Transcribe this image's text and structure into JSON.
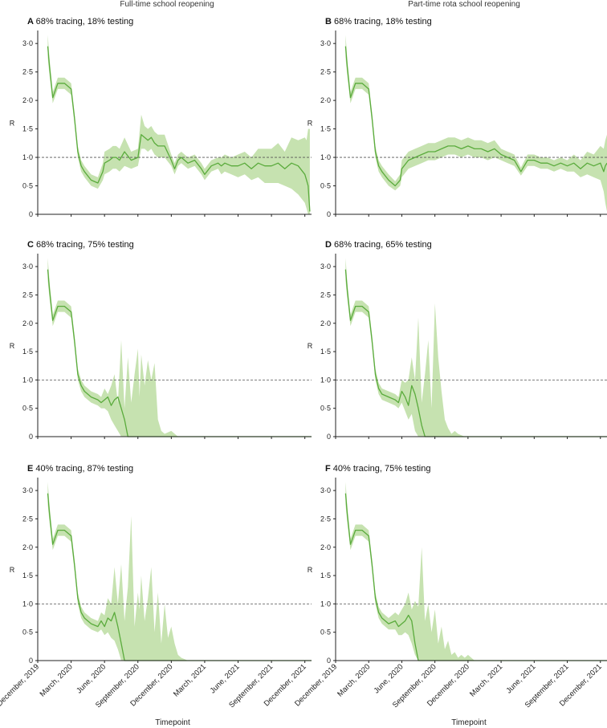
{
  "column_titles": [
    "Full-time school reopening",
    "Part-time rota school reopening"
  ],
  "x_axis_label": "Timepoint",
  "x_ticks": [
    "December, 2019",
    "March, 2020",
    "June, 2020",
    "September, 2020",
    "December, 2020",
    "March, 2021",
    "June, 2021",
    "September, 2021",
    "December, 2021"
  ],
  "y_axis_label": "R",
  "y_ticks": [
    "0",
    "0·5",
    "1·0",
    "1·5",
    "2·0",
    "2·5",
    "3·0"
  ],
  "reference_line": 1.0,
  "colors": {
    "line": "#5aab3c",
    "band": "#c6e2b0",
    "ref": "#555555",
    "axis": "#222222"
  },
  "chart_data": [
    {
      "type": "line",
      "letter": "A",
      "title": "68% tracing, 18% testing",
      "column": 0,
      "row": 0,
      "xlabel": "Timepoint",
      "ylabel": "R",
      "xlim": [
        0,
        8.2
      ],
      "ylim": [
        0,
        3.2
      ],
      "x": [
        0.3,
        0.35,
        0.45,
        0.6,
        0.8,
        1.0,
        1.1,
        1.2,
        1.3,
        1.4,
        1.6,
        1.8,
        1.95,
        2.0,
        2.15,
        2.25,
        2.35,
        2.45,
        2.6,
        2.8,
        3.0,
        3.1,
        3.2,
        3.3,
        3.4,
        3.5,
        3.6,
        3.8,
        4.0,
        4.1,
        4.2,
        4.3,
        4.5,
        4.7,
        4.9,
        5.0,
        5.2,
        5.4,
        5.5,
        5.6,
        5.8,
        6.0,
        6.2,
        6.4,
        6.6,
        6.8,
        7.0,
        7.2,
        7.4,
        7.6,
        7.8,
        8.0,
        8.05,
        8.1,
        8.15
      ],
      "mean": [
        2.95,
        2.6,
        2.05,
        2.3,
        2.3,
        2.2,
        1.7,
        1.1,
        0.85,
        0.75,
        0.6,
        0.55,
        0.75,
        0.9,
        0.95,
        1.0,
        1.0,
        0.95,
        1.1,
        0.95,
        1.0,
        1.4,
        1.35,
        1.3,
        1.35,
        1.25,
        1.2,
        1.2,
        0.95,
        0.8,
        0.95,
        1.0,
        0.9,
        0.95,
        0.8,
        0.7,
        0.85,
        0.9,
        0.85,
        0.9,
        0.85,
        0.85,
        0.9,
        0.8,
        0.9,
        0.85,
        0.85,
        0.9,
        0.8,
        0.9,
        0.85,
        0.7,
        0.6,
        0.5,
        0.05
      ],
      "lower": [
        2.75,
        2.45,
        1.95,
        2.2,
        2.2,
        2.1,
        1.6,
        1.0,
        0.75,
        0.65,
        0.5,
        0.45,
        0.6,
        0.7,
        0.75,
        0.8,
        0.8,
        0.75,
        0.85,
        0.8,
        0.85,
        1.15,
        1.15,
        1.1,
        1.15,
        1.05,
        1.0,
        1.0,
        0.85,
        0.7,
        0.85,
        0.9,
        0.8,
        0.85,
        0.7,
        0.6,
        0.75,
        0.8,
        0.7,
        0.75,
        0.7,
        0.65,
        0.7,
        0.6,
        0.65,
        0.55,
        0.55,
        0.55,
        0.5,
        0.45,
        0.35,
        0.2,
        0.1,
        0.0,
        0.0
      ],
      "upper": [
        3.15,
        2.75,
        2.15,
        2.4,
        2.4,
        2.3,
        1.8,
        1.2,
        0.95,
        0.85,
        0.7,
        0.65,
        0.9,
        1.1,
        1.15,
        1.2,
        1.2,
        1.15,
        1.35,
        1.1,
        1.15,
        1.75,
        1.55,
        1.5,
        1.55,
        1.45,
        1.4,
        1.4,
        1.05,
        0.9,
        1.05,
        1.1,
        1.0,
        1.05,
        0.9,
        0.8,
        0.95,
        1.0,
        1.0,
        1.05,
        1.0,
        1.05,
        1.1,
        1.0,
        1.15,
        1.15,
        1.15,
        1.25,
        1.1,
        1.35,
        1.3,
        1.35,
        1.3,
        1.5,
        1.5
      ]
    },
    {
      "type": "line",
      "letter": "B",
      "title": "68% tracing, 18% testing",
      "column": 1,
      "row": 0,
      "xlabel": "Timepoint",
      "ylabel": "R",
      "xlim": [
        0,
        8.2
      ],
      "ylim": [
        0,
        3.2
      ],
      "x": [
        0.3,
        0.35,
        0.45,
        0.6,
        0.8,
        1.0,
        1.1,
        1.2,
        1.3,
        1.4,
        1.6,
        1.8,
        1.95,
        2.0,
        2.2,
        2.4,
        2.6,
        2.8,
        3.0,
        3.2,
        3.4,
        3.6,
        3.8,
        4.0,
        4.2,
        4.4,
        4.6,
        4.8,
        5.0,
        5.2,
        5.4,
        5.6,
        5.8,
        6.0,
        6.2,
        6.4,
        6.6,
        6.8,
        7.0,
        7.2,
        7.4,
        7.6,
        7.8,
        8.0,
        8.1,
        8.15,
        8.2
      ],
      "mean": [
        2.95,
        2.6,
        2.05,
        2.3,
        2.3,
        2.2,
        1.7,
        1.1,
        0.85,
        0.75,
        0.6,
        0.5,
        0.6,
        0.8,
        0.95,
        1.0,
        1.05,
        1.1,
        1.1,
        1.15,
        1.2,
        1.2,
        1.15,
        1.2,
        1.15,
        1.15,
        1.1,
        1.15,
        1.05,
        1.0,
        0.95,
        0.75,
        0.95,
        0.95,
        0.9,
        0.9,
        0.85,
        0.9,
        0.85,
        0.9,
        0.8,
        0.9,
        0.85,
        0.9,
        0.75,
        0.85,
        0.9
      ],
      "lower": [
        2.75,
        2.45,
        1.95,
        2.2,
        2.2,
        2.1,
        1.6,
        1.0,
        0.75,
        0.65,
        0.5,
        0.42,
        0.5,
        0.65,
        0.8,
        0.85,
        0.9,
        0.95,
        0.95,
        1.0,
        1.05,
        1.05,
        1.0,
        1.05,
        1.0,
        1.0,
        0.95,
        1.0,
        0.95,
        0.9,
        0.85,
        0.68,
        0.85,
        0.85,
        0.8,
        0.8,
        0.75,
        0.8,
        0.75,
        0.75,
        0.65,
        0.7,
        0.65,
        0.6,
        0.4,
        0.2,
        0.05
      ],
      "upper": [
        3.15,
        2.75,
        2.15,
        2.4,
        2.4,
        2.3,
        1.8,
        1.2,
        0.95,
        0.85,
        0.7,
        0.58,
        0.7,
        0.95,
        1.1,
        1.15,
        1.2,
        1.25,
        1.25,
        1.3,
        1.35,
        1.35,
        1.3,
        1.35,
        1.3,
        1.3,
        1.25,
        1.3,
        1.15,
        1.1,
        1.05,
        0.82,
        1.05,
        1.05,
        1.0,
        1.0,
        0.95,
        1.0,
        0.95,
        1.05,
        0.95,
        1.1,
        1.05,
        1.2,
        1.15,
        1.3,
        1.4
      ]
    },
    {
      "type": "line",
      "letter": "C",
      "title": "68% tracing, 75% testing",
      "column": 0,
      "row": 1,
      "xlabel": "Timepoint",
      "ylabel": "R",
      "xlim": [
        0,
        8.2
      ],
      "ylim": [
        0,
        3.2
      ],
      "x": [
        0.3,
        0.35,
        0.45,
        0.6,
        0.8,
        1.0,
        1.1,
        1.2,
        1.3,
        1.4,
        1.6,
        1.8,
        1.9,
        2.0,
        2.1,
        2.2,
        2.3,
        2.4,
        2.5,
        2.6,
        2.7,
        2.8,
        2.9,
        3.0,
        3.05,
        3.1,
        3.2,
        3.3,
        3.4,
        3.5,
        3.6,
        3.7,
        3.8,
        4.0,
        4.2,
        4.5,
        5.0,
        6.0,
        7.0,
        8.2
      ],
      "mean": [
        2.95,
        2.6,
        2.05,
        2.3,
        2.3,
        2.2,
        1.7,
        1.1,
        0.9,
        0.8,
        0.7,
        0.65,
        0.6,
        0.65,
        0.7,
        0.55,
        0.65,
        0.7,
        0.5,
        0.3,
        0.0,
        0.0,
        0.0,
        0.0,
        0.0,
        0.0,
        0.0,
        0.0,
        0.0,
        0.0,
        0.0,
        0.0,
        0.0,
        0.0,
        0.0,
        0.0,
        0.0,
        0.0,
        0.0,
        0.0
      ],
      "lower": [
        2.75,
        2.45,
        1.95,
        2.2,
        2.2,
        2.1,
        1.6,
        1.0,
        0.8,
        0.7,
        0.6,
        0.55,
        0.5,
        0.5,
        0.45,
        0.3,
        0.2,
        0.1,
        0.0,
        0.0,
        0.0,
        0.0,
        0.0,
        0.0,
        0.0,
        0.0,
        0.0,
        0.0,
        0.0,
        0.0,
        0.0,
        0.0,
        0.0,
        0.0,
        0.0,
        0.0,
        0.0,
        0.0,
        0.0,
        0.0
      ],
      "upper": [
        3.15,
        2.75,
        2.15,
        2.4,
        2.4,
        2.3,
        1.8,
        1.2,
        1.0,
        0.9,
        0.8,
        0.75,
        0.7,
        0.85,
        0.75,
        0.9,
        1.1,
        0.6,
        1.7,
        0.5,
        1.4,
        0.6,
        1.1,
        1.55,
        0.7,
        1.45,
        0.9,
        1.35,
        1.0,
        1.3,
        0.3,
        0.1,
        0.05,
        0.1,
        0.0,
        0.0,
        0.0,
        0.0,
        0.0,
        0.0
      ]
    },
    {
      "type": "line",
      "letter": "D",
      "title": "68% tracing, 65% testing",
      "column": 1,
      "row": 1,
      "xlabel": "Timepoint",
      "ylabel": "R",
      "xlim": [
        0,
        8.2
      ],
      "ylim": [
        0,
        3.2
      ],
      "x": [
        0.3,
        0.35,
        0.45,
        0.6,
        0.8,
        1.0,
        1.1,
        1.2,
        1.3,
        1.4,
        1.6,
        1.8,
        1.9,
        2.0,
        2.1,
        2.2,
        2.3,
        2.4,
        2.5,
        2.6,
        2.7,
        2.8,
        2.9,
        3.0,
        3.1,
        3.2,
        3.3,
        3.4,
        3.5,
        3.6,
        3.7,
        3.9,
        4.2,
        5.0,
        6.0,
        7.0,
        8.2
      ],
      "mean": [
        2.95,
        2.6,
        2.05,
        2.3,
        2.3,
        2.2,
        1.7,
        1.1,
        0.85,
        0.75,
        0.7,
        0.65,
        0.6,
        0.8,
        0.7,
        0.55,
        0.9,
        0.75,
        0.5,
        0.2,
        0.0,
        0.0,
        0.0,
        0.0,
        0.0,
        0.0,
        0.0,
        0.0,
        0.0,
        0.0,
        0.0,
        0.0,
        0.0,
        0.0,
        0.0,
        0.0,
        0.0
      ],
      "lower": [
        2.75,
        2.45,
        1.95,
        2.2,
        2.2,
        2.1,
        1.6,
        1.0,
        0.75,
        0.65,
        0.6,
        0.55,
        0.5,
        0.6,
        0.45,
        0.3,
        0.4,
        0.1,
        0.0,
        0.0,
        0.0,
        0.0,
        0.0,
        0.0,
        0.0,
        0.0,
        0.0,
        0.0,
        0.0,
        0.0,
        0.0,
        0.0,
        0.0,
        0.0,
        0.0,
        0.0,
        0.0
      ],
      "upper": [
        3.15,
        2.75,
        2.15,
        2.4,
        2.4,
        2.3,
        1.8,
        1.2,
        0.95,
        0.85,
        0.8,
        0.75,
        0.7,
        1.0,
        0.95,
        1.0,
        1.4,
        1.0,
        2.1,
        0.6,
        1.1,
        1.7,
        0.5,
        2.35,
        1.4,
        0.8,
        0.3,
        0.15,
        0.05,
        0.1,
        0.05,
        0.0,
        0.0,
        0.0,
        0.0,
        0.0,
        0.0
      ]
    },
    {
      "type": "line",
      "letter": "E",
      "title": "40% tracing, 87% testing",
      "column": 0,
      "row": 2,
      "xlabel": "Timepoint",
      "ylabel": "R",
      "xlim": [
        0,
        8.2
      ],
      "ylim": [
        0,
        3.2
      ],
      "x": [
        0.3,
        0.35,
        0.45,
        0.6,
        0.8,
        1.0,
        1.1,
        1.2,
        1.3,
        1.4,
        1.6,
        1.8,
        1.9,
        2.0,
        2.1,
        2.2,
        2.3,
        2.4,
        2.5,
        2.6,
        2.7,
        2.8,
        2.9,
        3.0,
        3.05,
        3.1,
        3.2,
        3.3,
        3.4,
        3.5,
        3.6,
        3.7,
        3.8,
        3.9,
        4.0,
        4.1,
        4.2,
        4.3,
        4.5,
        5.0,
        6.0,
        7.0,
        8.2
      ],
      "mean": [
        2.95,
        2.6,
        2.05,
        2.3,
        2.3,
        2.2,
        1.7,
        1.1,
        0.85,
        0.75,
        0.65,
        0.6,
        0.7,
        0.6,
        0.75,
        0.7,
        0.85,
        0.6,
        0.3,
        0.0,
        0.0,
        0.0,
        0.0,
        0.0,
        0.0,
        0.0,
        0.0,
        0.0,
        0.0,
        0.0,
        0.0,
        0.0,
        0.0,
        0.0,
        0.0,
        0.0,
        0.0,
        0.0,
        0.0,
        0.0,
        0.0,
        0.0,
        0.0
      ],
      "lower": [
        2.75,
        2.45,
        1.95,
        2.2,
        2.2,
        2.1,
        1.6,
        1.0,
        0.75,
        0.65,
        0.55,
        0.5,
        0.55,
        0.45,
        0.5,
        0.4,
        0.35,
        0.2,
        0.0,
        0.0,
        0.0,
        0.0,
        0.0,
        0.0,
        0.0,
        0.0,
        0.0,
        0.0,
        0.0,
        0.0,
        0.0,
        0.0,
        0.0,
        0.0,
        0.0,
        0.0,
        0.0,
        0.0,
        0.0,
        0.0,
        0.0,
        0.0,
        0.0
      ],
      "upper": [
        3.15,
        2.75,
        2.15,
        2.4,
        2.4,
        2.3,
        1.8,
        1.2,
        0.95,
        0.85,
        0.75,
        0.7,
        0.85,
        0.8,
        1.1,
        1.0,
        1.65,
        1.0,
        1.7,
        0.7,
        1.3,
        2.55,
        0.6,
        1.2,
        0.9,
        1.5,
        0.7,
        1.1,
        1.65,
        0.5,
        1.2,
        0.3,
        1.0,
        0.4,
        0.6,
        0.3,
        0.1,
        0.05,
        0.0,
        0.0,
        0.0,
        0.0,
        0.0
      ]
    },
    {
      "type": "line",
      "letter": "F",
      "title": "40% tracing, 75% testing",
      "column": 1,
      "row": 2,
      "xlabel": "Timepoint",
      "ylabel": "R",
      "xlim": [
        0,
        8.2
      ],
      "ylim": [
        0,
        3.2
      ],
      "x": [
        0.3,
        0.35,
        0.45,
        0.6,
        0.8,
        1.0,
        1.1,
        1.2,
        1.3,
        1.4,
        1.6,
        1.8,
        1.9,
        2.0,
        2.1,
        2.2,
        2.3,
        2.4,
        2.5,
        2.6,
        2.7,
        2.8,
        2.9,
        3.0,
        3.1,
        3.2,
        3.3,
        3.4,
        3.5,
        3.6,
        3.7,
        3.8,
        3.9,
        4.0,
        4.2,
        4.5,
        5.0,
        6.0,
        7.0,
        8.2
      ],
      "mean": [
        2.95,
        2.6,
        2.05,
        2.3,
        2.3,
        2.2,
        1.7,
        1.1,
        0.85,
        0.75,
        0.65,
        0.7,
        0.6,
        0.65,
        0.7,
        0.8,
        0.7,
        0.3,
        0.0,
        0.0,
        0.0,
        0.0,
        0.0,
        0.0,
        0.0,
        0.0,
        0.0,
        0.0,
        0.0,
        0.0,
        0.0,
        0.0,
        0.0,
        0.0,
        0.0,
        0.0,
        0.0,
        0.0,
        0.0,
        0.0
      ],
      "lower": [
        2.75,
        2.45,
        1.95,
        2.2,
        2.2,
        2.1,
        1.6,
        1.0,
        0.75,
        0.65,
        0.55,
        0.55,
        0.45,
        0.45,
        0.5,
        0.45,
        0.3,
        0.1,
        0.0,
        0.0,
        0.0,
        0.0,
        0.0,
        0.0,
        0.0,
        0.0,
        0.0,
        0.0,
        0.0,
        0.0,
        0.0,
        0.0,
        0.0,
        0.0,
        0.0,
        0.0,
        0.0,
        0.0,
        0.0,
        0.0
      ],
      "upper": [
        3.15,
        2.75,
        2.15,
        2.4,
        2.4,
        2.3,
        1.8,
        1.2,
        0.95,
        0.85,
        0.75,
        0.85,
        0.8,
        0.9,
        1.0,
        1.2,
        0.9,
        1.05,
        0.95,
        2.0,
        0.7,
        1.0,
        0.5,
        0.9,
        0.3,
        0.6,
        0.2,
        0.35,
        0.1,
        0.15,
        0.05,
        0.1,
        0.05,
        0.1,
        0.0,
        0.0,
        0.0,
        0.0,
        0.0,
        0.0
      ]
    }
  ]
}
